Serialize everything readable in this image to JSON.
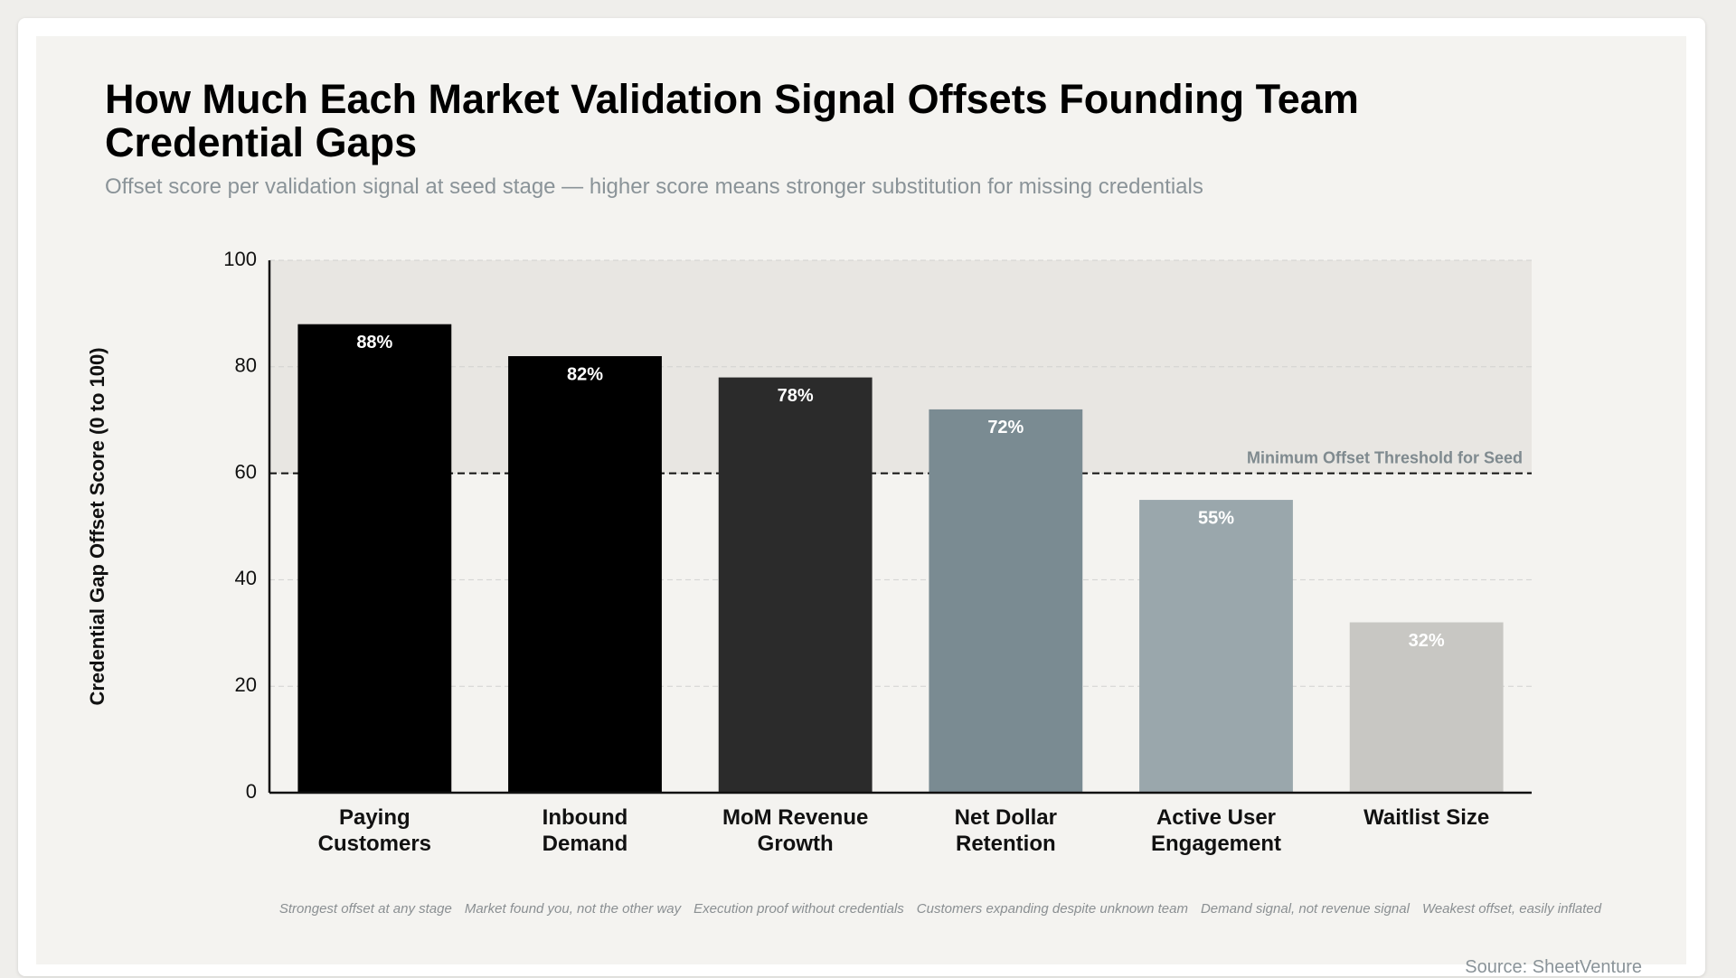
{
  "chart_data": {
    "type": "bar",
    "title": "How Much Each Market Validation Signal Offsets Founding Team Credential Gaps",
    "subtitle": "Offset score per validation signal at seed stage — higher score means stronger substitution for missing credentials",
    "y_label": "Credential Gap Offset Score (0 to 100)",
    "categories": [
      "Paying Customers",
      "Inbound Demand",
      "MoM Revenue Growth",
      "Net Dollar Retention",
      "Active User Engagement",
      "Waitlist Size"
    ],
    "values": [
      88,
      82,
      78,
      72,
      55,
      32
    ],
    "value_labels": [
      "88%",
      "82%",
      "78%",
      "72%",
      "55%",
      "32%"
    ],
    "colors": [
      "#000000",
      "#000000",
      "#2b2b2b",
      "#7a8b92",
      "#9aa7ac",
      "#c8c7c3"
    ],
    "annotations": [
      "Strongest offset at any stage",
      "Market found you, not the other way",
      "Execution proof without credentials",
      "Customers expanding despite unknown team",
      "Demand signal, not revenue signal",
      "Weakest offset, easily inflated"
    ],
    "threshold": {
      "value": 60,
      "label": "Minimum Offset Threshold for Seed"
    },
    "ylim": [
      0,
      100
    ],
    "yticks": [
      0,
      20,
      40,
      60,
      80,
      100
    ],
    "grid": true,
    "source": "Source: SheetVenture"
  }
}
